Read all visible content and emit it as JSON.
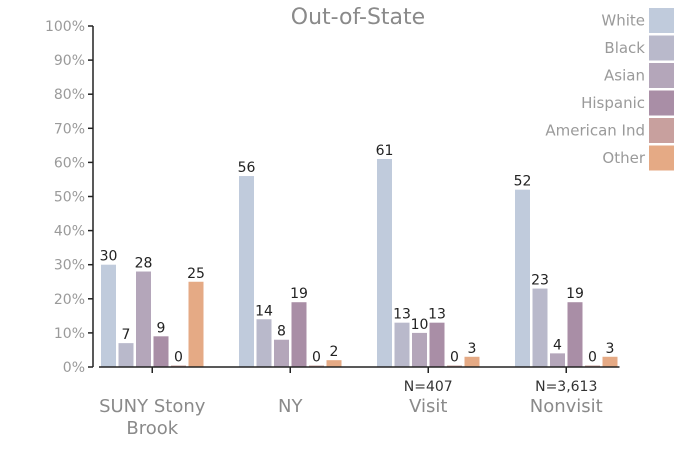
{
  "chart_data": {
    "type": "bar",
    "title": "Out-of-State",
    "categories": [
      "SUNY Stony Brook",
      "NY",
      "Visit",
      "Nonvisit"
    ],
    "category_lines": [
      [
        "SUNY Stony",
        "Brook"
      ],
      [
        "NY"
      ],
      [
        "Visit"
      ],
      [
        "Nonvisit"
      ]
    ],
    "sample_labels": [
      "",
      "",
      "N=407",
      "N=3,613"
    ],
    "series": [
      {
        "name": "White",
        "color": "#c0cbdc",
        "values": [
          30,
          56,
          61,
          52
        ]
      },
      {
        "name": "Black",
        "color": "#b9b9cb",
        "values": [
          7,
          14,
          13,
          23
        ]
      },
      {
        "name": "Asian",
        "color": "#b4a6ba",
        "values": [
          28,
          8,
          10,
          4
        ]
      },
      {
        "name": "Hispanic",
        "color": "#a98ea6",
        "values": [
          9,
          19,
          13,
          19
        ]
      },
      {
        "name": "American Ind",
        "color": "#c8a09e",
        "values": [
          0,
          0,
          0,
          0
        ]
      },
      {
        "name": "Other",
        "color": "#e5aa85",
        "values": [
          25,
          2,
          3,
          3
        ]
      }
    ],
    "yticks": [
      "0%",
      "10%",
      "20%",
      "30%",
      "40%",
      "50%",
      "60%",
      "70%",
      "80%",
      "90%",
      "100%"
    ],
    "ylim": [
      0,
      100
    ],
    "xlabel": "",
    "ylabel": "",
    "legend": "top-right",
    "grid": false
  }
}
